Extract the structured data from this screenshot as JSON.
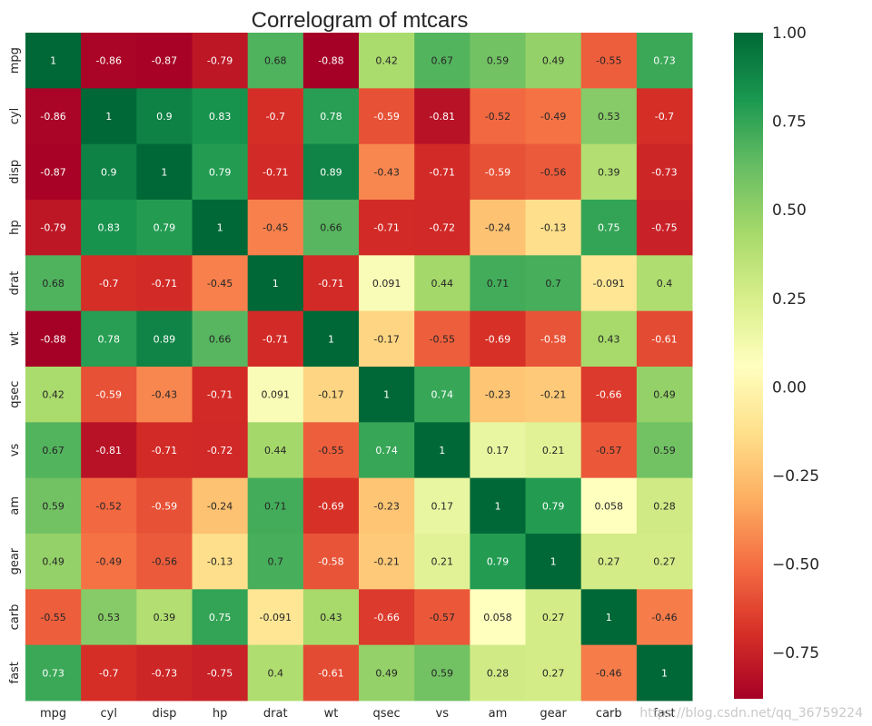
{
  "chart_data": {
    "type": "heatmap",
    "title": "Correlogram of mtcars",
    "xlabels": [
      "mpg",
      "cyl",
      "disp",
      "hp",
      "drat",
      "wt",
      "qsec",
      "vs",
      "am",
      "gear",
      "carb",
      "fast"
    ],
    "ylabels": [
      "mpg",
      "cyl",
      "disp",
      "hp",
      "drat",
      "wt",
      "qsec",
      "vs",
      "am",
      "gear",
      "carb",
      "fast"
    ],
    "values": [
      [
        1,
        -0.86,
        -0.87,
        -0.79,
        0.68,
        -0.88,
        0.42,
        0.67,
        0.59,
        0.49,
        -0.55,
        0.73
      ],
      [
        -0.86,
        1,
        0.9,
        0.83,
        -0.7,
        0.78,
        -0.59,
        -0.81,
        -0.52,
        -0.49,
        0.53,
        -0.7
      ],
      [
        -0.87,
        0.9,
        1,
        0.79,
        -0.71,
        0.89,
        -0.43,
        -0.71,
        -0.59,
        -0.56,
        0.39,
        -0.73
      ],
      [
        -0.79,
        0.83,
        0.79,
        1,
        -0.45,
        0.66,
        -0.71,
        -0.72,
        -0.24,
        -0.13,
        0.75,
        -0.75
      ],
      [
        0.68,
        -0.7,
        -0.71,
        -0.45,
        1,
        -0.71,
        0.091,
        0.44,
        0.71,
        0.7,
        -0.091,
        0.4
      ],
      [
        -0.88,
        0.78,
        0.89,
        0.66,
        -0.71,
        1,
        -0.17,
        -0.55,
        -0.69,
        -0.58,
        0.43,
        -0.61
      ],
      [
        0.42,
        -0.59,
        -0.43,
        -0.71,
        0.091,
        -0.17,
        1,
        0.74,
        -0.23,
        -0.21,
        -0.66,
        0.49
      ],
      [
        0.67,
        -0.81,
        -0.71,
        -0.72,
        0.44,
        -0.55,
        0.74,
        1,
        0.17,
        0.21,
        -0.57,
        0.59
      ],
      [
        0.59,
        -0.52,
        -0.59,
        -0.24,
        0.71,
        -0.69,
        -0.23,
        0.17,
        1,
        0.79,
        0.058,
        0.28
      ],
      [
        0.49,
        -0.49,
        -0.56,
        -0.13,
        0.7,
        -0.58,
        -0.21,
        0.21,
        0.79,
        1,
        0.27,
        0.27
      ],
      [
        -0.55,
        0.53,
        0.39,
        0.75,
        -0.091,
        0.43,
        -0.66,
        -0.57,
        0.058,
        0.27,
        1,
        -0.46
      ],
      [
        0.73,
        -0.7,
        -0.73,
        -0.75,
        0.4,
        -0.61,
        0.49,
        0.59,
        0.28,
        0.27,
        -0.46,
        1
      ]
    ],
    "colorbar": {
      "range": [
        -0.88,
        1.0
      ],
      "ticks": [
        1.0,
        0.75,
        0.5,
        0.25,
        0.0,
        -0.25,
        -0.5,
        -0.75
      ],
      "tick_labels": [
        "1.00",
        "0.75",
        "0.50",
        "0.25",
        "0.00",
        "−0.25",
        "−0.50",
        "−0.75"
      ],
      "colormap": "RdYlGn",
      "colors": [
        "#a50026",
        "#d73027",
        "#f46d43",
        "#fdae61",
        "#fee08b",
        "#ffffbf",
        "#d9ef8b",
        "#a6d96a",
        "#66bd63",
        "#1a9850",
        "#006837"
      ]
    },
    "xlabel": "",
    "ylabel": ""
  },
  "watermark": "https://blog.csdn.net/qq_36759224"
}
